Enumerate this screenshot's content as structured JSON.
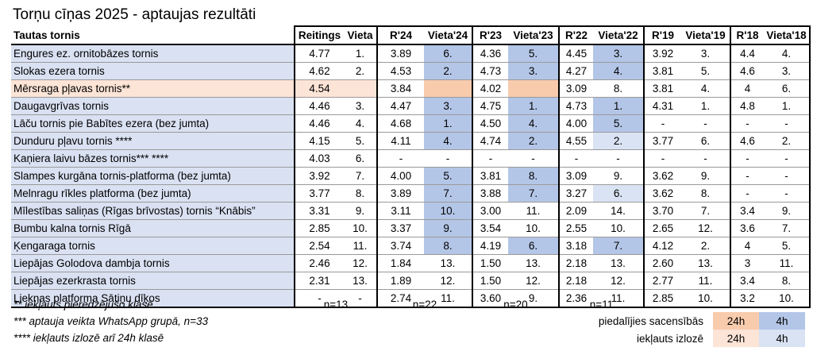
{
  "title": "Torņu cīņas 2025 - aptaujas rezultāti",
  "columns": [
    "Tautas tornis",
    "Reitings",
    "Vieta",
    "R'24",
    "Vieta'24",
    "R'23",
    "Vieta'23",
    "R'22",
    "Vieta'22",
    "R'19",
    "Vieta'19",
    "R'18",
    "Vieta'18"
  ],
  "rows": [
    {
      "name": "Engures ez. ornitobāzes tornis",
      "cells": [
        "4.77",
        "1.",
        "3.89",
        "6.",
        "4.36",
        "5.",
        "4.45",
        "3.",
        "3.92",
        "3.",
        "4.4",
        "4."
      ]
    },
    {
      "name": "Slokas ezera tornis",
      "cells": [
        "4.62",
        "2.",
        "4.53",
        "2.",
        "4.73",
        "3.",
        "4.27",
        "4.",
        "3.81",
        "5.",
        "4.6",
        "3."
      ]
    },
    {
      "name": "Mērsraga pļavas tornis**",
      "cells": [
        "4.54",
        "",
        "3.84",
        "",
        "4.02",
        "",
        "3.09",
        "8.",
        "3.81",
        "4.",
        "4",
        "6."
      ]
    },
    {
      "name": "Daugavgrīvas tornis",
      "cells": [
        "4.46",
        "3.",
        "4.47",
        "3.",
        "4.75",
        "1.",
        "4.73",
        "1.",
        "4.31",
        "1.",
        "4.8",
        "1."
      ]
    },
    {
      "name": "Lāču tornis pie Babītes ezera (bez jumta)",
      "cells": [
        "4.46",
        "4.",
        "4.68",
        "1.",
        "4.50",
        "4.",
        "4.00",
        "5.",
        "-",
        "-",
        "-",
        "-"
      ]
    },
    {
      "name": "Dunduru pļavu tornis ****",
      "cells": [
        "4.15",
        "5.",
        "4.11",
        "4.",
        "4.74",
        "2.",
        "4.55",
        "2.",
        "3.77",
        "6.",
        "4.6",
        "2."
      ]
    },
    {
      "name": "Kaņiera laivu bāzes tornis*** ****",
      "cells": [
        "4.03",
        "6.",
        "-",
        "-",
        "-",
        "-",
        "-",
        "-",
        "-",
        "-",
        "-",
        "-"
      ]
    },
    {
      "name": "Slampes kurgāna tornis-platforma (bez jumta)",
      "cells": [
        "3.92",
        "7.",
        "4.00",
        "5.",
        "3.81",
        "8.",
        "3.09",
        "9.",
        "3.62",
        "9.",
        "-",
        "-"
      ]
    },
    {
      "name": "Melnragu rīkles platforma (bez jumta)",
      "cells": [
        "3.77",
        "8.",
        "3.89",
        "7.",
        "3.88",
        "7.",
        "3.27",
        "6.",
        "3.62",
        "8.",
        "-",
        "-"
      ]
    },
    {
      "name": "Mīlestības saliņas (Rīgas brīvostas) tornis “Knābis”",
      "cells": [
        "3.31",
        "9.",
        "3.11",
        "10.",
        "3.00",
        "11.",
        "2.09",
        "14.",
        "3.70",
        "7.",
        "3.4",
        "9."
      ]
    },
    {
      "name": "Bumbu kalna tornis Rīgā",
      "cells": [
        "2.85",
        "10.",
        "3.37",
        "9.",
        "3.54",
        "10.",
        "2.55",
        "10.",
        "2.65",
        "12.",
        "3.6",
        "7."
      ]
    },
    {
      "name": "Ķengaraga tornis",
      "cells": [
        "2.54",
        "11.",
        "3.74",
        "8.",
        "4.19",
        "6.",
        "3.18",
        "7.",
        "4.12",
        "2.",
        "4",
        "5."
      ]
    },
    {
      "name": "Liepājas Golodova dambja tornis",
      "cells": [
        "2.46",
        "12.",
        "1.84",
        "13.",
        "1.50",
        "13.",
        "2.18",
        "13.",
        "2.60",
        "13.",
        "3",
        "11."
      ]
    },
    {
      "name": "Liepājas ezerkrasta tornis",
      "cells": [
        "2.31",
        "13.",
        "1.89",
        "12.",
        "1.50",
        "12.",
        "2.18",
        "12.",
        "2.77",
        "11.",
        "3.4",
        "8."
      ]
    },
    {
      "name": "Lieknas platforma Sātiņu dīķos",
      "cells": [
        "-",
        "-",
        "2.74",
        "11.",
        "3.60",
        "9.",
        "2.36",
        "11.",
        "2.85",
        "10.",
        "3.2",
        "10."
      ]
    }
  ],
  "footnotes": {
    "note1": "** iekļauts pieredzējušo klasē",
    "note2": "*** aptauja veikta WhatsApp grupā, n=33",
    "note3": "**** iekļauts izlozē arī 24h klasē",
    "n_reitings": "n=13",
    "n_r24": "n=22",
    "n_r23": "n=20",
    "n_r22": "n=11"
  },
  "legend": {
    "participated": "piedalījies sacensībās",
    "lottery": "iekļauts izlozē",
    "label_24h": "24h",
    "label_4h": "4h",
    "colors": {
      "dark_orange": "#f8cbad",
      "dark_blue": "#b4c6e7",
      "light_orange": "#fce4d6",
      "light_blue": "#dae3f3"
    }
  }
}
